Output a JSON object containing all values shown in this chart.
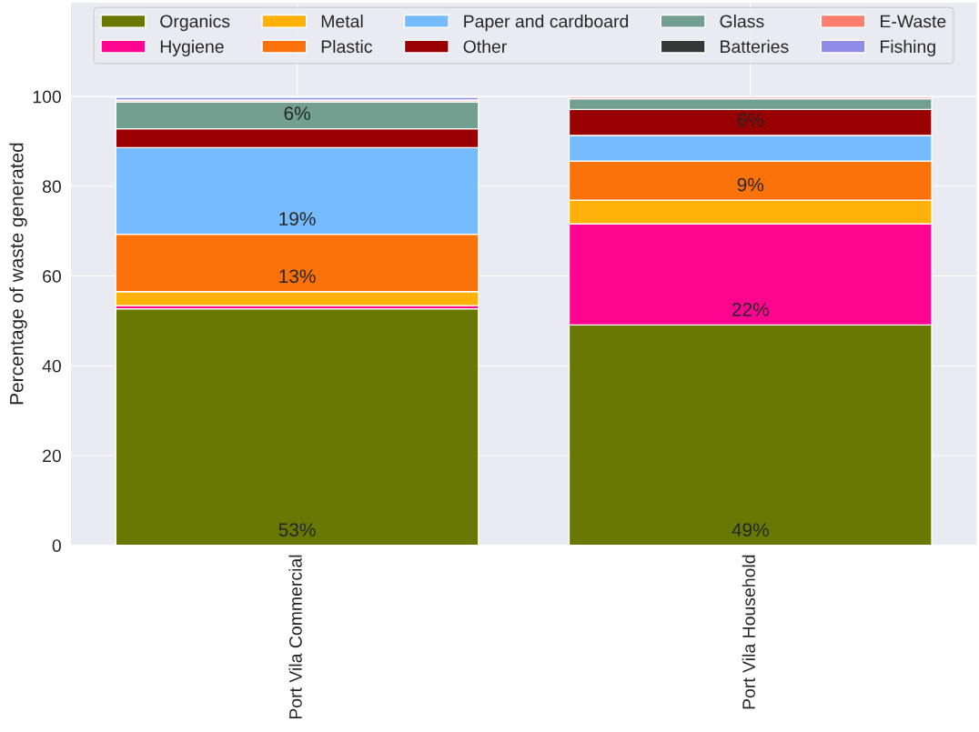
{
  "chart_data": {
    "type": "bar",
    "stacked": true,
    "ylabel": "Percentage of waste generated",
    "categories": [
      "Port Vila Commercial",
      "Port Vila Household"
    ],
    "ylim": [
      0,
      121
    ],
    "yticks": [
      0,
      20,
      40,
      60,
      80,
      100
    ],
    "grid": true,
    "legend": "top",
    "series": [
      {
        "name": "Organics",
        "color": "#687803",
        "values": [
          52.7,
          49.1
        ],
        "value_labels": [
          "53%",
          "49%"
        ]
      },
      {
        "name": "Hygiene",
        "color": "#ff058f",
        "values": [
          0.7,
          22.5
        ],
        "value_labels": [
          null,
          "22%"
        ]
      },
      {
        "name": "Metal",
        "color": "#ffb10a",
        "values": [
          3.1,
          5.3
        ],
        "value_labels": [
          null,
          null
        ]
      },
      {
        "name": "Plastic",
        "color": "#fa730a",
        "values": [
          12.8,
          8.7
        ],
        "value_labels": [
          "13%",
          "9%"
        ]
      },
      {
        "name": "Paper and cardboard",
        "color": "#75bbfd",
        "values": [
          19.3,
          5.7
        ],
        "value_labels": [
          "19%",
          null
        ]
      },
      {
        "name": "Other",
        "color": "#980002",
        "values": [
          4.2,
          5.8
        ],
        "value_labels": [
          null,
          "6%"
        ]
      },
      {
        "name": "Glass",
        "color": "#729f8f",
        "values": [
          6.0,
          2.4
        ],
        "value_labels": [
          "6%",
          null
        ]
      },
      {
        "name": "Batteries",
        "color": "#343837",
        "values": [
          0,
          0
        ],
        "value_labels": [
          null,
          null
        ]
      },
      {
        "name": "E-Waste",
        "color": "#ff7f6e",
        "values": [
          0.4,
          0.4
        ],
        "value_labels": [
          null,
          null
        ]
      },
      {
        "name": "Fishing",
        "color": "#8f8ce7",
        "values": [
          0.6,
          0
        ],
        "value_labels": [
          null,
          null
        ]
      }
    ]
  }
}
